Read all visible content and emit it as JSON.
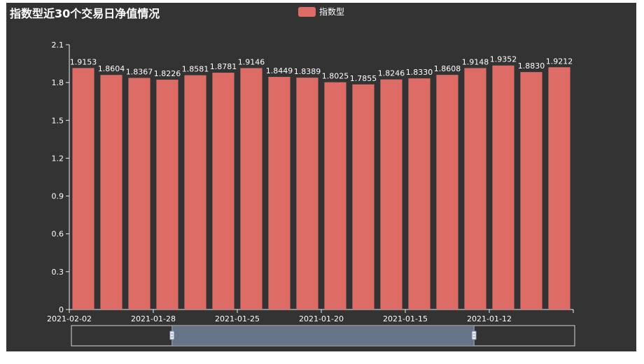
{
  "title": "指数型近30个交易日净值情况",
  "legend": {
    "label": "指数型",
    "color": "#dd6b66"
  },
  "colors": {
    "background": "#333333",
    "bar": "#dd6b66",
    "axis": "#eeeeee",
    "text": "#ffffff",
    "zoom_fill": "#7a8aa3"
  },
  "chart_data": {
    "type": "bar",
    "title": "指数型近30个交易日净值情况",
    "series": [
      {
        "name": "指数型",
        "values": [
          1.9153,
          1.8604,
          1.8367,
          1.8226,
          1.8581,
          1.8781,
          1.9146,
          1.8449,
          1.8389,
          1.8025,
          1.7855,
          1.8246,
          1.833,
          1.8608,
          1.9148,
          1.9352,
          1.883,
          1.9212
        ]
      }
    ],
    "value_labels": [
      "1.9153",
      "1.8604",
      "1.8367",
      "1.8226",
      "1.8581",
      "1.8781",
      "1.9146",
      "1.8449",
      "1.8389",
      "1.8025",
      "1.7855",
      "1.8246",
      "1.8330",
      "1.8608",
      "1.9148",
      "1.9352",
      "1.8830",
      "1.9212"
    ],
    "x_tick_labels": [
      "2021-02-02",
      "2021-01-28",
      "2021-01-25",
      "2021-01-20",
      "2021-01-15",
      "2021-01-12"
    ],
    "y_ticks": [
      "0",
      "0.3",
      "0.6",
      "0.9",
      "1.2",
      "1.5",
      "1.8",
      "2.1"
    ],
    "ylim": [
      0,
      2.1
    ],
    "grid": false,
    "legend_position": "top-center",
    "data_zoom": {
      "start": 0.2,
      "end": 0.8
    }
  }
}
